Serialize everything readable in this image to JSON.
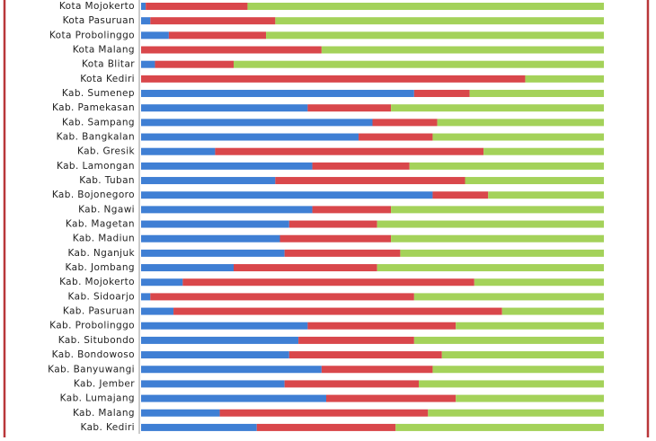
{
  "chart_data": {
    "type": "stacked-bar-horizontal",
    "categories": [
      "Kota Mojokerto",
      "Kota Pasuruan",
      "Kota Probolinggo",
      "Kota Malang",
      "Kota Blitar",
      "Kota Kediri",
      "Kab. Sumenep",
      "Kab. Pamekasan",
      "Kab. Sampang",
      "Kab. Bangkalan",
      "Kab. Gresik",
      "Kab. Lamongan",
      "Kab. Tuban",
      "Kab. Bojonegoro",
      "Kab. Ngawi",
      "Kab. Magetan",
      "Kab. Madiun",
      "Kab. Nganjuk",
      "Kab. Jombang",
      "Kab. Mojokerto",
      "Kab. Sidoarjo",
      "Kab. Pasuruan",
      "Kab. Probolinggo",
      "Kab. Situbondo",
      "Kab. Bondowoso",
      "Kab. Banyuwangi",
      "Kab. Jember",
      "Kab. Lumajang",
      "Kab. Malang",
      "Kab. Kediri"
    ],
    "series": [
      {
        "color": "#3f7fd4",
        "values": [
          1,
          2,
          6,
          0,
          3,
          0,
          59,
          36,
          50,
          47,
          16,
          37,
          29,
          63,
          37,
          32,
          30,
          31,
          20,
          9,
          2,
          7,
          36,
          34,
          32,
          39,
          31,
          40,
          17,
          25
        ]
      },
      {
        "color": "#d9474b",
        "values": [
          22,
          27,
          21,
          39,
          17,
          83,
          12,
          18,
          14,
          16,
          58,
          21,
          41,
          12,
          17,
          19,
          24,
          25,
          31,
          63,
          57,
          71,
          32,
          25,
          33,
          24,
          29,
          28,
          45,
          30
        ]
      },
      {
        "color": "#a4d25a",
        "values": [
          77,
          71,
          73,
          61,
          80,
          17,
          29,
          46,
          36,
          37,
          26,
          42,
          30,
          25,
          46,
          49,
          46,
          44,
          49,
          28,
          41,
          22,
          32,
          41,
          35,
          37,
          40,
          32,
          38,
          45
        ]
      }
    ],
    "xlim": [
      0,
      100
    ]
  }
}
